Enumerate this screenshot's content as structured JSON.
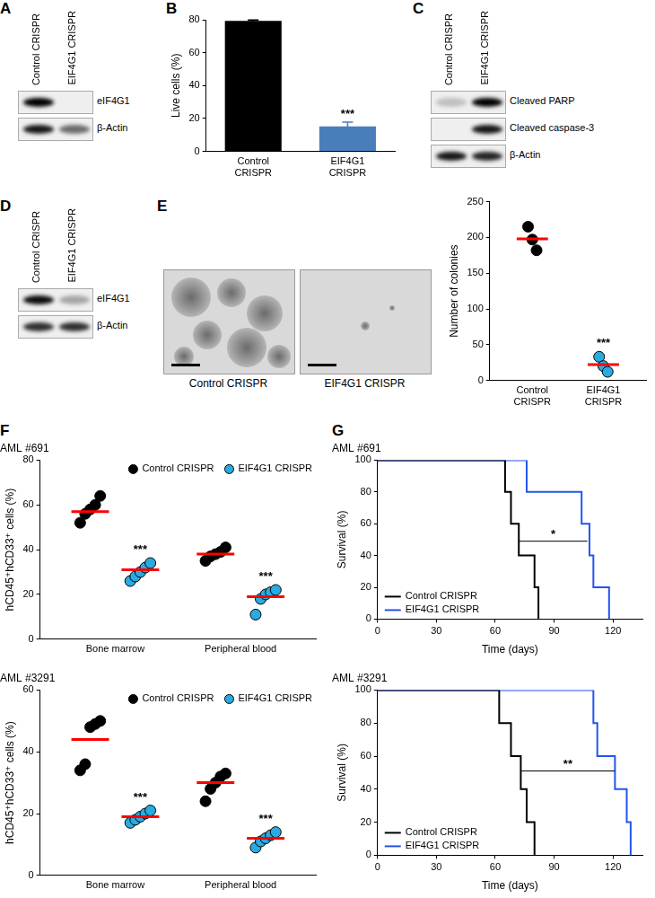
{
  "panels": [
    {
      "panel": "A",
      "type": "blot",
      "lanes": [
        "Control CRISPR",
        "EIF4G1 CRISPR"
      ],
      "bands": [
        "eIF4G1",
        "β-Actin"
      ]
    },
    {
      "panel": "C",
      "type": "blot",
      "lanes": [
        "Control CRISPR",
        "EIF4G1 CRISPR"
      ],
      "bands": [
        "Cleaved PARP",
        "Cleaved caspase-3",
        "β-Actin"
      ]
    },
    {
      "panel": "D",
      "type": "blot",
      "lanes": [
        "Control CRISPR",
        "EIF4G1 CRISPR"
      ],
      "bands": [
        "eIF4G1",
        "β-Actin"
      ]
    },
    {
      "panel": "E",
      "type": "micrograph",
      "labels": [
        "Control CRISPR",
        "EIF4G1 CRISPR"
      ]
    }
  ],
  "chart_data": [
    {
      "panel": "B",
      "type": "bar",
      "categories": [
        "Control CRISPR",
        "EIF4G1 CRISPR"
      ],
      "values": [
        79.3,
        15.2
      ],
      "errors": [
        0.6,
        2.6
      ],
      "colors": [
        "#000000",
        "#4a7ebb"
      ],
      "y_label": "Live cells (%)",
      "ylim": [
        0,
        80
      ],
      "yticks": [
        0,
        20,
        40,
        60,
        80
      ],
      "significance": [
        null,
        "***"
      ],
      "grid": false
    },
    {
      "type": "scatter",
      "categories": [
        "Control CRISPR",
        "EIF4G1 CRISPR"
      ],
      "values": [
        [
          215,
          197,
          182
        ],
        [
          33,
          20,
          12
        ]
      ],
      "means": [
        198,
        22
      ],
      "colors": [
        "#000000",
        "#29abe2"
      ],
      "y_label": "Number of colonies",
      "ylim": [
        0,
        250
      ],
      "yticks": [
        0,
        50,
        100,
        150,
        200,
        250
      ],
      "significance": [
        null,
        "***"
      ],
      "grid": false
    },
    {
      "panel": "F",
      "type": "scatter",
      "title": "AML #691",
      "categories": [
        "Bone marrow",
        "Peripheral blood"
      ],
      "series": [
        {
          "name": "Control CRISPR",
          "color": "#000000",
          "values": [
            [
              52,
              56,
              58,
              60,
              64
            ],
            [
              35,
              37,
              38,
              39,
              41
            ]
          ],
          "means": [
            57,
            38
          ]
        },
        {
          "name": "EIF4G1 CRISPR",
          "color": "#29abe2",
          "values": [
            [
              26,
              28,
              30,
              32,
              34
            ],
            [
              11,
              18,
              20,
              21,
              22
            ]
          ],
          "means": [
            31,
            19
          ],
          "significance": [
            "***",
            "***"
          ]
        }
      ],
      "y_label": "hCD45⁺hCD33⁺ cells (%)",
      "ylim": [
        0,
        80
      ],
      "yticks": [
        0,
        20,
        40,
        60,
        80
      ],
      "legend": "top-right",
      "grid": false
    },
    {
      "type": "scatter",
      "title": "AML #3291",
      "categories": [
        "Bone marrow",
        "Peripheral blood"
      ],
      "series": [
        {
          "name": "Control CRISPR",
          "color": "#000000",
          "values": [
            [
              34,
              36,
              48,
              49,
              50
            ],
            [
              24,
              28,
              30,
              32,
              33
            ]
          ],
          "means": [
            44,
            30
          ]
        },
        {
          "name": "EIF4G1 CRISPR",
          "color": "#29abe2",
          "values": [
            [
              17,
              18,
              19,
              20,
              21
            ],
            [
              9,
              11,
              12,
              13,
              14
            ]
          ],
          "means": [
            19,
            12
          ],
          "significance": [
            "***",
            "***"
          ]
        }
      ],
      "y_label": "hCD45⁺hCD33⁺ cells (%)",
      "ylim": [
        0,
        60
      ],
      "yticks": [
        0,
        20,
        40,
        60
      ],
      "legend": "top-right",
      "grid": false
    },
    {
      "panel": "G",
      "type": "line",
      "title": "AML #691",
      "x_label": "Time (days)",
      "y_label": "Survival (%)",
      "xlim": [
        0,
        135
      ],
      "xticks": [
        0,
        30,
        60,
        90,
        120
      ],
      "ylim": [
        0,
        100
      ],
      "yticks": [
        0,
        20,
        40,
        60,
        80,
        100
      ],
      "line_style": "step",
      "legend": "bottom-left",
      "grid": false,
      "series": [
        {
          "name": "Control CRISPR",
          "color": "#000000",
          "x": [
            0,
            65,
            68,
            72,
            80,
            82
          ],
          "values": [
            100,
            80,
            60,
            40,
            20,
            0
          ]
        },
        {
          "name": "EIF4G1 CRISPR",
          "color": "#2255ee",
          "x": [
            0,
            76,
            104,
            108,
            110,
            118
          ],
          "values": [
            100,
            80,
            60,
            40,
            20,
            0
          ]
        }
      ],
      "significance": {
        "text": "*",
        "x": [
          72,
          107
        ],
        "y": 49
      }
    },
    {
      "type": "line",
      "title": "AML #3291",
      "x_label": "Time (days)",
      "y_label": "Survival (%)",
      "xlim": [
        0,
        135
      ],
      "xticks": [
        0,
        30,
        60,
        90,
        120
      ],
      "ylim": [
        0,
        100
      ],
      "yticks": [
        0,
        20,
        40,
        60,
        80,
        100
      ],
      "line_style": "step",
      "legend": "bottom-left",
      "grid": false,
      "series": [
        {
          "name": "Control CRISPR",
          "color": "#000000",
          "x": [
            0,
            62,
            68,
            73,
            76,
            80
          ],
          "values": [
            100,
            80,
            60,
            40,
            20,
            0
          ]
        },
        {
          "name": "EIF4G1 CRISPR",
          "color": "#2255ee",
          "x": [
            0,
            110,
            112,
            121,
            127,
            129
          ],
          "values": [
            100,
            80,
            60,
            40,
            20,
            0
          ]
        }
      ],
      "significance": {
        "text": "**",
        "x": [
          73,
          121
        ],
        "y": 51
      }
    }
  ]
}
